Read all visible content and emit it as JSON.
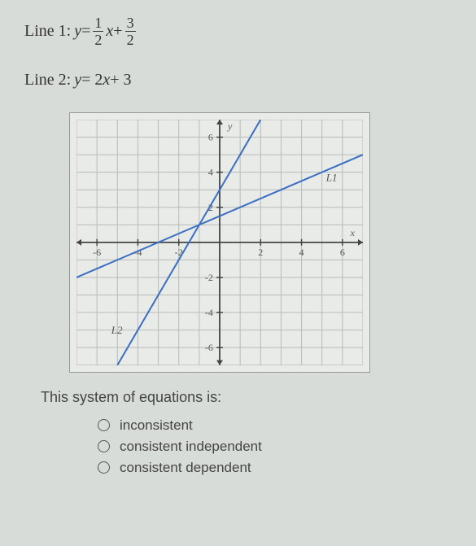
{
  "line1": {
    "label": "Line 1: ",
    "lhs_var": "y",
    "equals": " = ",
    "frac1_num": "1",
    "frac1_den": "2",
    "mid_var": "x",
    "plus": " + ",
    "frac2_num": "3",
    "frac2_den": "2"
  },
  "line2": {
    "label": "Line 2: ",
    "lhs_var": "y",
    "equals": " = 2",
    "rhs_var": "x",
    "tail": " + 3"
  },
  "question": "This system of equations is:",
  "options": {
    "a": "inconsistent",
    "b": "consistent independent",
    "c": "consistent dependent"
  },
  "chart": {
    "type": "line",
    "xlim": [
      -7,
      7
    ],
    "ylim": [
      -7,
      7
    ],
    "xticks": [
      -6,
      -4,
      -2,
      2,
      4,
      6
    ],
    "yticks": [
      -6,
      -4,
      -2,
      2,
      4,
      6
    ],
    "xlabel": "x",
    "ylabel": "y",
    "label_L1": "L1",
    "label_L2": "L2",
    "background_color": "#e8ebe8",
    "grid_color": "#b8bcb8",
    "axis_color": "#444",
    "line_color": "#3b6fc4",
    "text_color": "#555",
    "label_fontsize": 12,
    "lines": [
      {
        "name": "L1",
        "slope": 0.5,
        "intercept": 1.5,
        "x_from": -7,
        "x_to": 7
      },
      {
        "name": "L2",
        "slope": 2.0,
        "intercept": 3.0,
        "x_from": -5,
        "x_to": 2
      }
    ]
  }
}
